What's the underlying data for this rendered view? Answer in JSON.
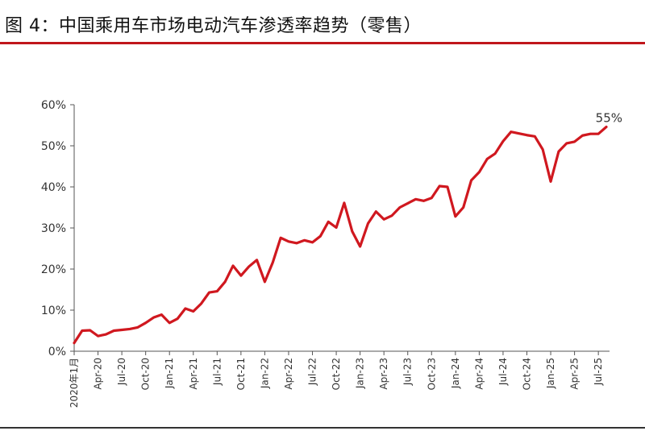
{
  "title": "图 4：中国乘用车市场电动汽车渗透率趋势（零售）",
  "colors": {
    "accent": "#c0161c",
    "line": "#d0181f",
    "axis": "#555555",
    "text": "#333333"
  },
  "chart_data": {
    "type": "line",
    "title": "图 4：中国乘用车市场电动汽车渗透率趋势（零售）",
    "xlabel": "",
    "ylabel": "",
    "ylim": [
      0,
      60
    ],
    "y_ticks": [
      "0%",
      "10%",
      "20%",
      "30%",
      "40%",
      "50%",
      "60%"
    ],
    "x_tick_labels": [
      {
        "index": 0,
        "label": "2020年1月"
      },
      {
        "index": 3,
        "label": "Apr-20"
      },
      {
        "index": 6,
        "label": "Jul-20"
      },
      {
        "index": 9,
        "label": "Oct-20"
      },
      {
        "index": 12,
        "label": "Jan-21"
      },
      {
        "index": 15,
        "label": "Apr-21"
      },
      {
        "index": 18,
        "label": "Jul-21"
      },
      {
        "index": 21,
        "label": "Oct-21"
      },
      {
        "index": 24,
        "label": "Jan-22"
      },
      {
        "index": 27,
        "label": "Apr-22"
      },
      {
        "index": 30,
        "label": "Jul-22"
      },
      {
        "index": 33,
        "label": "Oct-22"
      },
      {
        "index": 36,
        "label": "Jan-23"
      },
      {
        "index": 39,
        "label": "Apr-23"
      },
      {
        "index": 42,
        "label": "Jul-23"
      },
      {
        "index": 45,
        "label": "Oct-23"
      },
      {
        "index": 48,
        "label": "Jan-24"
      },
      {
        "index": 51,
        "label": "Apr-24"
      },
      {
        "index": 54,
        "label": "Jul-24"
      },
      {
        "index": 57,
        "label": "Oct-24"
      },
      {
        "index": 60,
        "label": "Jan-25"
      },
      {
        "index": 63,
        "label": "Apr-25"
      },
      {
        "index": 66,
        "label": "Jul-25"
      }
    ],
    "series": [
      {
        "values": [
          2.0,
          5.0,
          5.1,
          3.7,
          4.1,
          5.0,
          5.2,
          5.4,
          5.8,
          6.9,
          8.2,
          8.9,
          6.9,
          7.9,
          10.4,
          9.7,
          11.6,
          14.3,
          14.6,
          16.9,
          20.8,
          18.4,
          20.6,
          22.2,
          16.9,
          21.6,
          27.6,
          26.7,
          26.3,
          27.0,
          26.5,
          28.0,
          31.5,
          30.1,
          36.1,
          29.2,
          25.5,
          31.1,
          34.0,
          32.1,
          33.0,
          35.0,
          36.0,
          37.0,
          36.6,
          37.3,
          40.2,
          40.0,
          32.8,
          35.0,
          41.6,
          43.6,
          46.8,
          48.1,
          51.1,
          53.4,
          53.0,
          52.6,
          52.3,
          49.1,
          41.3,
          48.6,
          50.6,
          51.0,
          52.5,
          52.9,
          52.9,
          54.6
        ]
      }
    ],
    "annotations": [
      {
        "text": "55%",
        "index": 67,
        "value": 54.6
      }
    ],
    "grid": false,
    "legend": "none"
  }
}
